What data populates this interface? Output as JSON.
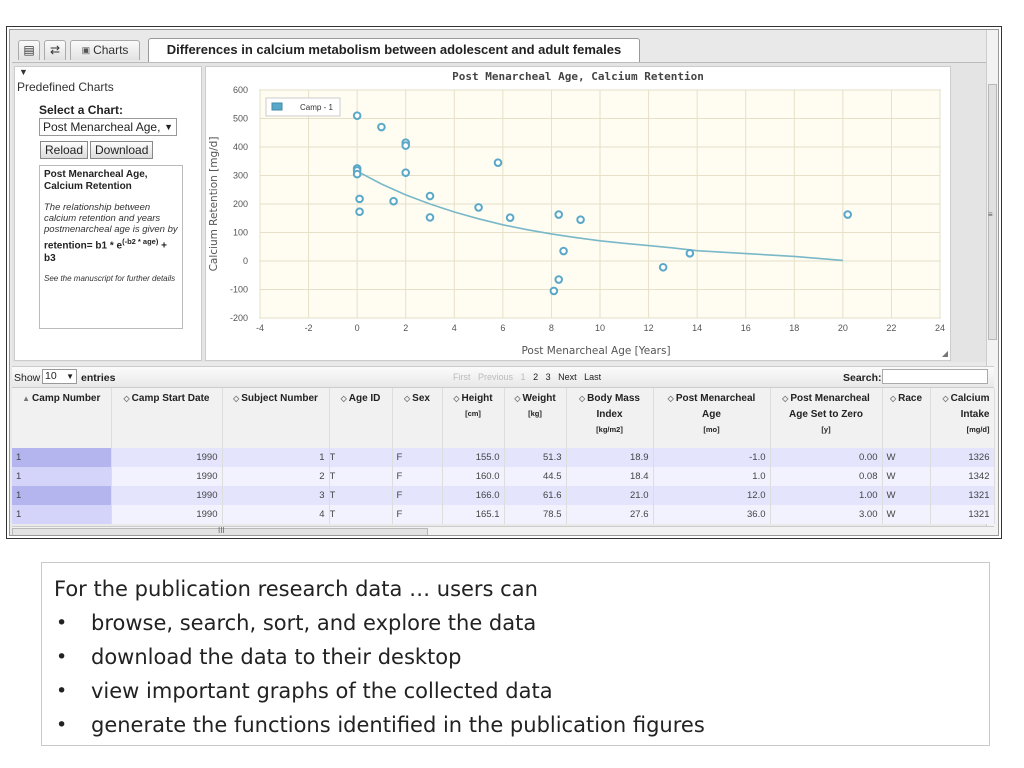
{
  "tabs": {
    "icon_1": "▤",
    "icon_2": "⇄",
    "charts_label": "Charts",
    "title": "Differences in calcium metabolism between adolescent and adult females"
  },
  "left_panel": {
    "collapse_icon": "▼",
    "title": "Predefined Charts",
    "select_label": "Select a Chart:",
    "select_value": "Post Menarcheal Age,",
    "reload_label": "Reload",
    "download_label": "Download",
    "description_title": "Post Menarcheal Age, Calcium Retention",
    "description_text": "The relationship between calcium retention and years postmenarcheal age is given by",
    "formula_main": "retention= b1 * e",
    "formula_exp": "(-b2 * age)",
    "formula_tail": " + b3",
    "note": "See the manuscript for further details"
  },
  "chart_data": {
    "type": "scatter",
    "title": "Post Menarcheal Age, Calcium Retention",
    "xlabel": "Post Menarcheal Age [Years]",
    "ylabel": "Calcium Retention [mg/d]",
    "xlim": [
      -4,
      24
    ],
    "ylim": [
      -200,
      600
    ],
    "xticks": [
      -4,
      -2,
      0,
      2,
      4,
      6,
      8,
      10,
      12,
      14,
      16,
      18,
      20,
      22,
      24
    ],
    "yticks": [
      -200,
      -100,
      0,
      100,
      200,
      300,
      400,
      500,
      600
    ],
    "grid": true,
    "legend": "top-left",
    "series": [
      {
        "name": "Camp - 1",
        "color": "#5aa8c8",
        "points": [
          [
            0.0,
            510
          ],
          [
            1.0,
            470
          ],
          [
            2.0,
            415
          ],
          [
            2.0,
            405
          ],
          [
            0.0,
            325
          ],
          [
            0.0,
            318
          ],
          [
            0.0,
            305
          ],
          [
            2.0,
            310
          ],
          [
            5.8,
            345
          ],
          [
            3.0,
            228
          ],
          [
            5.0,
            188
          ],
          [
            0.1,
            218
          ],
          [
            1.5,
            210
          ],
          [
            0.1,
            173
          ],
          [
            3.0,
            153
          ],
          [
            6.3,
            152
          ],
          [
            8.3,
            163
          ],
          [
            9.2,
            145
          ],
          [
            8.5,
            35
          ],
          [
            8.3,
            -65
          ],
          [
            8.1,
            -105
          ],
          [
            12.6,
            -22
          ],
          [
            13.7,
            27
          ],
          [
            20.2,
            163
          ]
        ]
      }
    ],
    "fit_curve": {
      "color": "#79b8c8",
      "points": [
        [
          0,
          315
        ],
        [
          1,
          270
        ],
        [
          2,
          232
        ],
        [
          3,
          200
        ],
        [
          4,
          172
        ],
        [
          5,
          148
        ],
        [
          6,
          127
        ],
        [
          7,
          110
        ],
        [
          8,
          95
        ],
        [
          9,
          82
        ],
        [
          10,
          71
        ],
        [
          11,
          62
        ],
        [
          12,
          54
        ],
        [
          13,
          46
        ],
        [
          14,
          36
        ],
        [
          16,
          26
        ],
        [
          18,
          16
        ],
        [
          20,
          2
        ]
      ]
    }
  },
  "grid": {
    "show_label": "Show",
    "entries_value": "10",
    "entries_label": "entries",
    "pager": {
      "first": "First",
      "previous": "Previous",
      "pages": [
        "1",
        "2",
        "3"
      ],
      "next": "Next",
      "last": "Last"
    },
    "search_label": "Search:",
    "search_value": "",
    "columns": [
      {
        "label": "Camp Number",
        "arrow": "▲",
        "sub1": "",
        "sub2": ""
      },
      {
        "label": "Camp Start Date",
        "arrow": "◇",
        "sub1": "",
        "sub2": ""
      },
      {
        "label": "Subject Number",
        "arrow": "◇",
        "sub1": "",
        "sub2": ""
      },
      {
        "label": "Age ID",
        "arrow": "◇",
        "sub1": "",
        "sub2": ""
      },
      {
        "label": "Sex",
        "arrow": "◇",
        "sub1": "",
        "sub2": ""
      },
      {
        "label": "Height",
        "arrow": "◇",
        "sub1": "[cm]",
        "sub2": ""
      },
      {
        "label": "Weight",
        "arrow": "◇",
        "sub1": "[kg]",
        "sub2": ""
      },
      {
        "label": "Body Mass Index",
        "arrow": "◇",
        "sub1": "[kg/m2]",
        "sub2": ""
      },
      {
        "label": "Post Menarcheal Age",
        "arrow": "◇",
        "sub1": "[mo]",
        "sub2": ""
      },
      {
        "label": "Post Menarcheal Age Set to Zero",
        "arrow": "◇",
        "sub1": "[y]",
        "sub2": ""
      },
      {
        "label": "Race",
        "arrow": "◇",
        "sub1": "",
        "sub2": ""
      },
      {
        "label": "Calcium Intake",
        "arrow": "◇",
        "sub1": "[mg/d]",
        "sub2": ""
      }
    ],
    "rows": [
      [
        "1",
        "1990",
        "1",
        "T",
        "F",
        "155.0",
        "51.3",
        "18.9",
        "-1.0",
        "0.00",
        "W",
        "1326"
      ],
      [
        "1",
        "1990",
        "2",
        "T",
        "F",
        "160.0",
        "44.5",
        "18.4",
        "1.0",
        "0.08",
        "W",
        "1342"
      ],
      [
        "1",
        "1990",
        "3",
        "T",
        "F",
        "166.0",
        "61.6",
        "21.0",
        "12.0",
        "1.00",
        "W",
        "1321"
      ],
      [
        "1",
        "1990",
        "4",
        "T",
        "F",
        "165.1",
        "78.5",
        "27.6",
        "36.0",
        "3.00",
        "W",
        "1321"
      ]
    ]
  },
  "bullets": {
    "intro": "For the publication research data … users can",
    "items": [
      "browse, search, sort, and explore the data",
      "download the data to their desktop",
      "view important graphs of the collected data",
      "generate the functions identified in the publication figures"
    ],
    "marker": "•"
  }
}
